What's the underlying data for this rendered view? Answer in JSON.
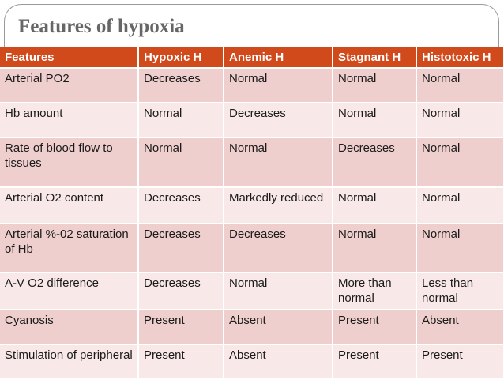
{
  "title": "Features of hypoxia",
  "colors": {
    "header": "#d14a1c",
    "row_dark": "#efcfcd",
    "row_light": "#f8e8e7"
  },
  "table": {
    "headers": [
      "Features",
      "Hypoxic H",
      "Anemic H",
      "Stagnant H",
      "Histotoxic H"
    ],
    "rows": [
      [
        "Arterial PO2",
        "Decreases",
        "Normal",
        "Normal",
        "Normal"
      ],
      [
        "Hb amount",
        "Normal",
        "Decreases",
        "Normal",
        "Normal"
      ],
      [
        "Rate of blood flow to tissues",
        "Normal",
        "Normal",
        "Decreases",
        "Normal"
      ],
      [
        "Arterial O2 content",
        "Decreases",
        "Markedly reduced",
        "Normal",
        "Normal"
      ],
      [
        "Arterial %-02 saturation of Hb",
        "Decreases",
        "Decreases",
        "Normal",
        "Normal"
      ],
      [
        "A-V O2 difference",
        "Decreases",
        "Normal",
        "More than normal",
        "Less than normal"
      ],
      [
        "Cyanosis",
        "Present",
        "Absent",
        "Present",
        "Absent"
      ],
      [
        "Stimulation of peripheral",
        "Present",
        "Absent",
        "Present",
        "Present"
      ]
    ]
  }
}
